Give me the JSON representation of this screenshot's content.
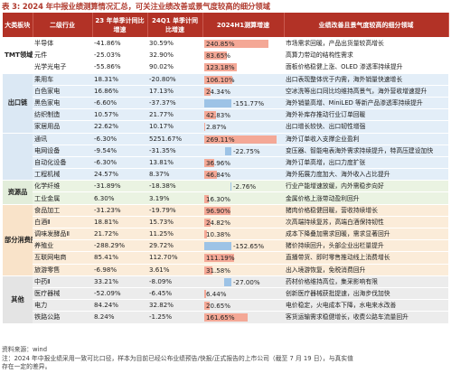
{
  "title": "表 3:  2024 年中报业绩测算情况汇总，可关注业绩改善或景气度较高的细分领域",
  "header": {
    "col_group": "大类板块",
    "col_industry": "二级行业",
    "col_23h1": "23 年单季计同比增速",
    "col_24q1": "24Q1 单季计同比增速",
    "col_24h1": "2024H1测算增速",
    "col_desc": "业绩改善且景气度较高的细分领域"
  },
  "bar_colors": {
    "pos": "#f4a896",
    "neg": "#9dc3e6",
    "outline": "#e06a55"
  },
  "groups": [
    {
      "name": "TMT领域",
      "class": "g-tmt",
      "rows": [
        {
          "ind": "半导体",
          "v23": "-41.86%",
          "v24q1": "30.59%",
          "v24h1": "240.85%",
          "bar": 240.85,
          "desc": "市场需求回暖，产品出货量较高增长"
        },
        {
          "ind": "元件",
          "v23": "-25.03%",
          "v24q1": "32.90%",
          "v24h1": "83.65%",
          "bar": 83.65,
          "desc": "高算力带动的结构性需求"
        },
        {
          "ind": "光学光电子",
          "v23": "-55.86%",
          "v24q1": "90.02%",
          "v24h1": "123.18%",
          "bar": 123.18,
          "desc": "面板价格稳健上涨、OLED 渗透率持续提升"
        }
      ]
    },
    {
      "name": "出口链",
      "class": "g-ckz",
      "rows": [
        {
          "ind": "乘用车",
          "v23": "18.31%",
          "v24q1": "-20.80%",
          "v24h1": "106.10%",
          "bar": 106.1,
          "desc": "出口表现整体优于内需，海外销量快速增长"
        },
        {
          "ind": "白色家电",
          "v23": "16.86%",
          "v24q1": "17.13%",
          "v24h1": "24.34%",
          "bar": 24.34,
          "desc": "空冰洗等出口同比均维持高景气，海外营收增速提升"
        },
        {
          "ind": "黑色家电",
          "v23": "-6.60%",
          "v24q1": "-37.37%",
          "v24h1": "-151.77%",
          "bar": -151.77,
          "desc": "海外销量高增、MiniLED 等新产品渗透率持续提升"
        },
        {
          "ind": "纺织制造",
          "v23": "10.57%",
          "v24q1": "21.77%",
          "v24h1": "42.83%",
          "bar": 42.83,
          "desc": "海外补库存推动行业订单回暖"
        },
        {
          "ind": "家居用品",
          "v23": "22.62%",
          "v24q1": "10.17%",
          "v24h1": "2.87%",
          "bar": 2.87,
          "desc": "出口增长较快、出口韧性增强"
        }
      ]
    },
    {
      "name": "",
      "class": "g-ckz",
      "rows": [
        {
          "ind": "通讯",
          "v23": "-6.30%",
          "v24q1": "5251.67%",
          "v24h1": "269.11%",
          "bar": 269.11,
          "desc": "海外订单收入支撑企业盈利"
        },
        {
          "ind": "电网设备",
          "v23": "-9.54%",
          "v24q1": "-31.35%",
          "v24h1": "-22.75%",
          "bar": -22.75,
          "desc": "变压器、智能电表海外需求持续提升，特高压建设加快"
        },
        {
          "ind": "自动化设备",
          "v23": "-6.30%",
          "v24q1": "13.81%",
          "v24h1": "36.96%",
          "bar": 36.96,
          "desc": "海外订单高增，出口力度扩张"
        },
        {
          "ind": "工程机械",
          "v23": "24.57%",
          "v24q1": "8.37%",
          "v24h1": "46.84%",
          "bar": 46.84,
          "desc": "海外拓展力度加大、海外收入占比提升"
        }
      ]
    },
    {
      "name": "资源品",
      "class": "g-zyp",
      "rows": [
        {
          "ind": "化学纤维",
          "v23": "-31.89%",
          "v24q1": "-18.38%",
          "v24h1": "-2.76%",
          "bar": -2.76,
          "desc": "行业产能增速放缓，内外需稳步向好"
        },
        {
          "ind": "工业金属",
          "v23": "6.30%",
          "v24q1": "3.19%",
          "v24h1": "16.30%",
          "bar": 16.3,
          "desc": "金属价格上涨带动盈利回升"
        }
      ]
    },
    {
      "name": "部分消费服务",
      "class": "g-xf",
      "rows": [
        {
          "ind": "食品加工",
          "v23": "-31.23%",
          "v24q1": "-19.79%",
          "v24h1": "96.90%",
          "bar": 96.9,
          "desc": "猪肉价格稳健回暖，营收持续增长"
        },
        {
          "ind": "白酒Ⅱ",
          "v23": "18.81%",
          "v24q1": "15.73%",
          "v24h1": "24.82%",
          "bar": 24.82,
          "desc": "次高端持续复苏，高端白酒保持韧性"
        },
        {
          "ind": "调味发酵品Ⅱ",
          "v23": "21.72%",
          "v24q1": "11.25%",
          "v24h1": "10.38%",
          "bar": 10.38,
          "desc": "成本下降叠加需求回暖，需求显著回升"
        },
        {
          "ind": "养殖业",
          "v23": "-288.29%",
          "v24q1": "29.72%",
          "v24h1": "-152.65%",
          "bar": -152.65,
          "desc": "猪价持续回升，头部企业出栏量提升"
        },
        {
          "ind": "互联网电商",
          "v23": "85.41%",
          "v24q1": "112.70%",
          "v24h1": "111.19%",
          "bar": 111.19,
          "desc": "直播带货、即时零售推动线上消费增长"
        },
        {
          "ind": "旅游零售",
          "v23": "-6.98%",
          "v24q1": "3.61%",
          "v24h1": "31.58%",
          "bar": 31.58,
          "desc": "出入境游恢复，免税消费回升"
        }
      ]
    },
    {
      "name": "其他",
      "class": "g-qt",
      "rows": [
        {
          "ind": "中药Ⅱ",
          "v23": "33.21%",
          "v24q1": "-8.09%",
          "v24h1": "-27.00%",
          "bar": -27.0,
          "desc": "药材价格维持高位，集采影响有限"
        },
        {
          "ind": "医疗器械",
          "v23": "-52.09%",
          "v24q1": "-6.45%",
          "v24h1": "6.44%",
          "bar": 6.44,
          "desc": "创新医疗器械获批提速，出海步伐加快"
        },
        {
          "ind": "电力",
          "v23": "84.24%",
          "v24q1": "32.82%",
          "v24h1": "20.65%",
          "bar": 20.65,
          "desc": "电价稳定，火电成本下降，水电来水改善"
        },
        {
          "ind": "铁路公路",
          "v23": "8.24%",
          "v24q1": "-1.25%",
          "v24h1": "161.65%",
          "bar": 161.65,
          "desc": "客货运输需求稳健增长，收费公路车流量回升"
        }
      ]
    }
  ],
  "source_line1": "资料来源：wind",
  "source_line2": "注：2024 年中报业绩采用一致可比口径，样本为目前已经公布业绩预告/快报/正式报告的上市公司（截至 7 月 19 日），与真实值",
  "source_line3": "存在一定的差异。"
}
